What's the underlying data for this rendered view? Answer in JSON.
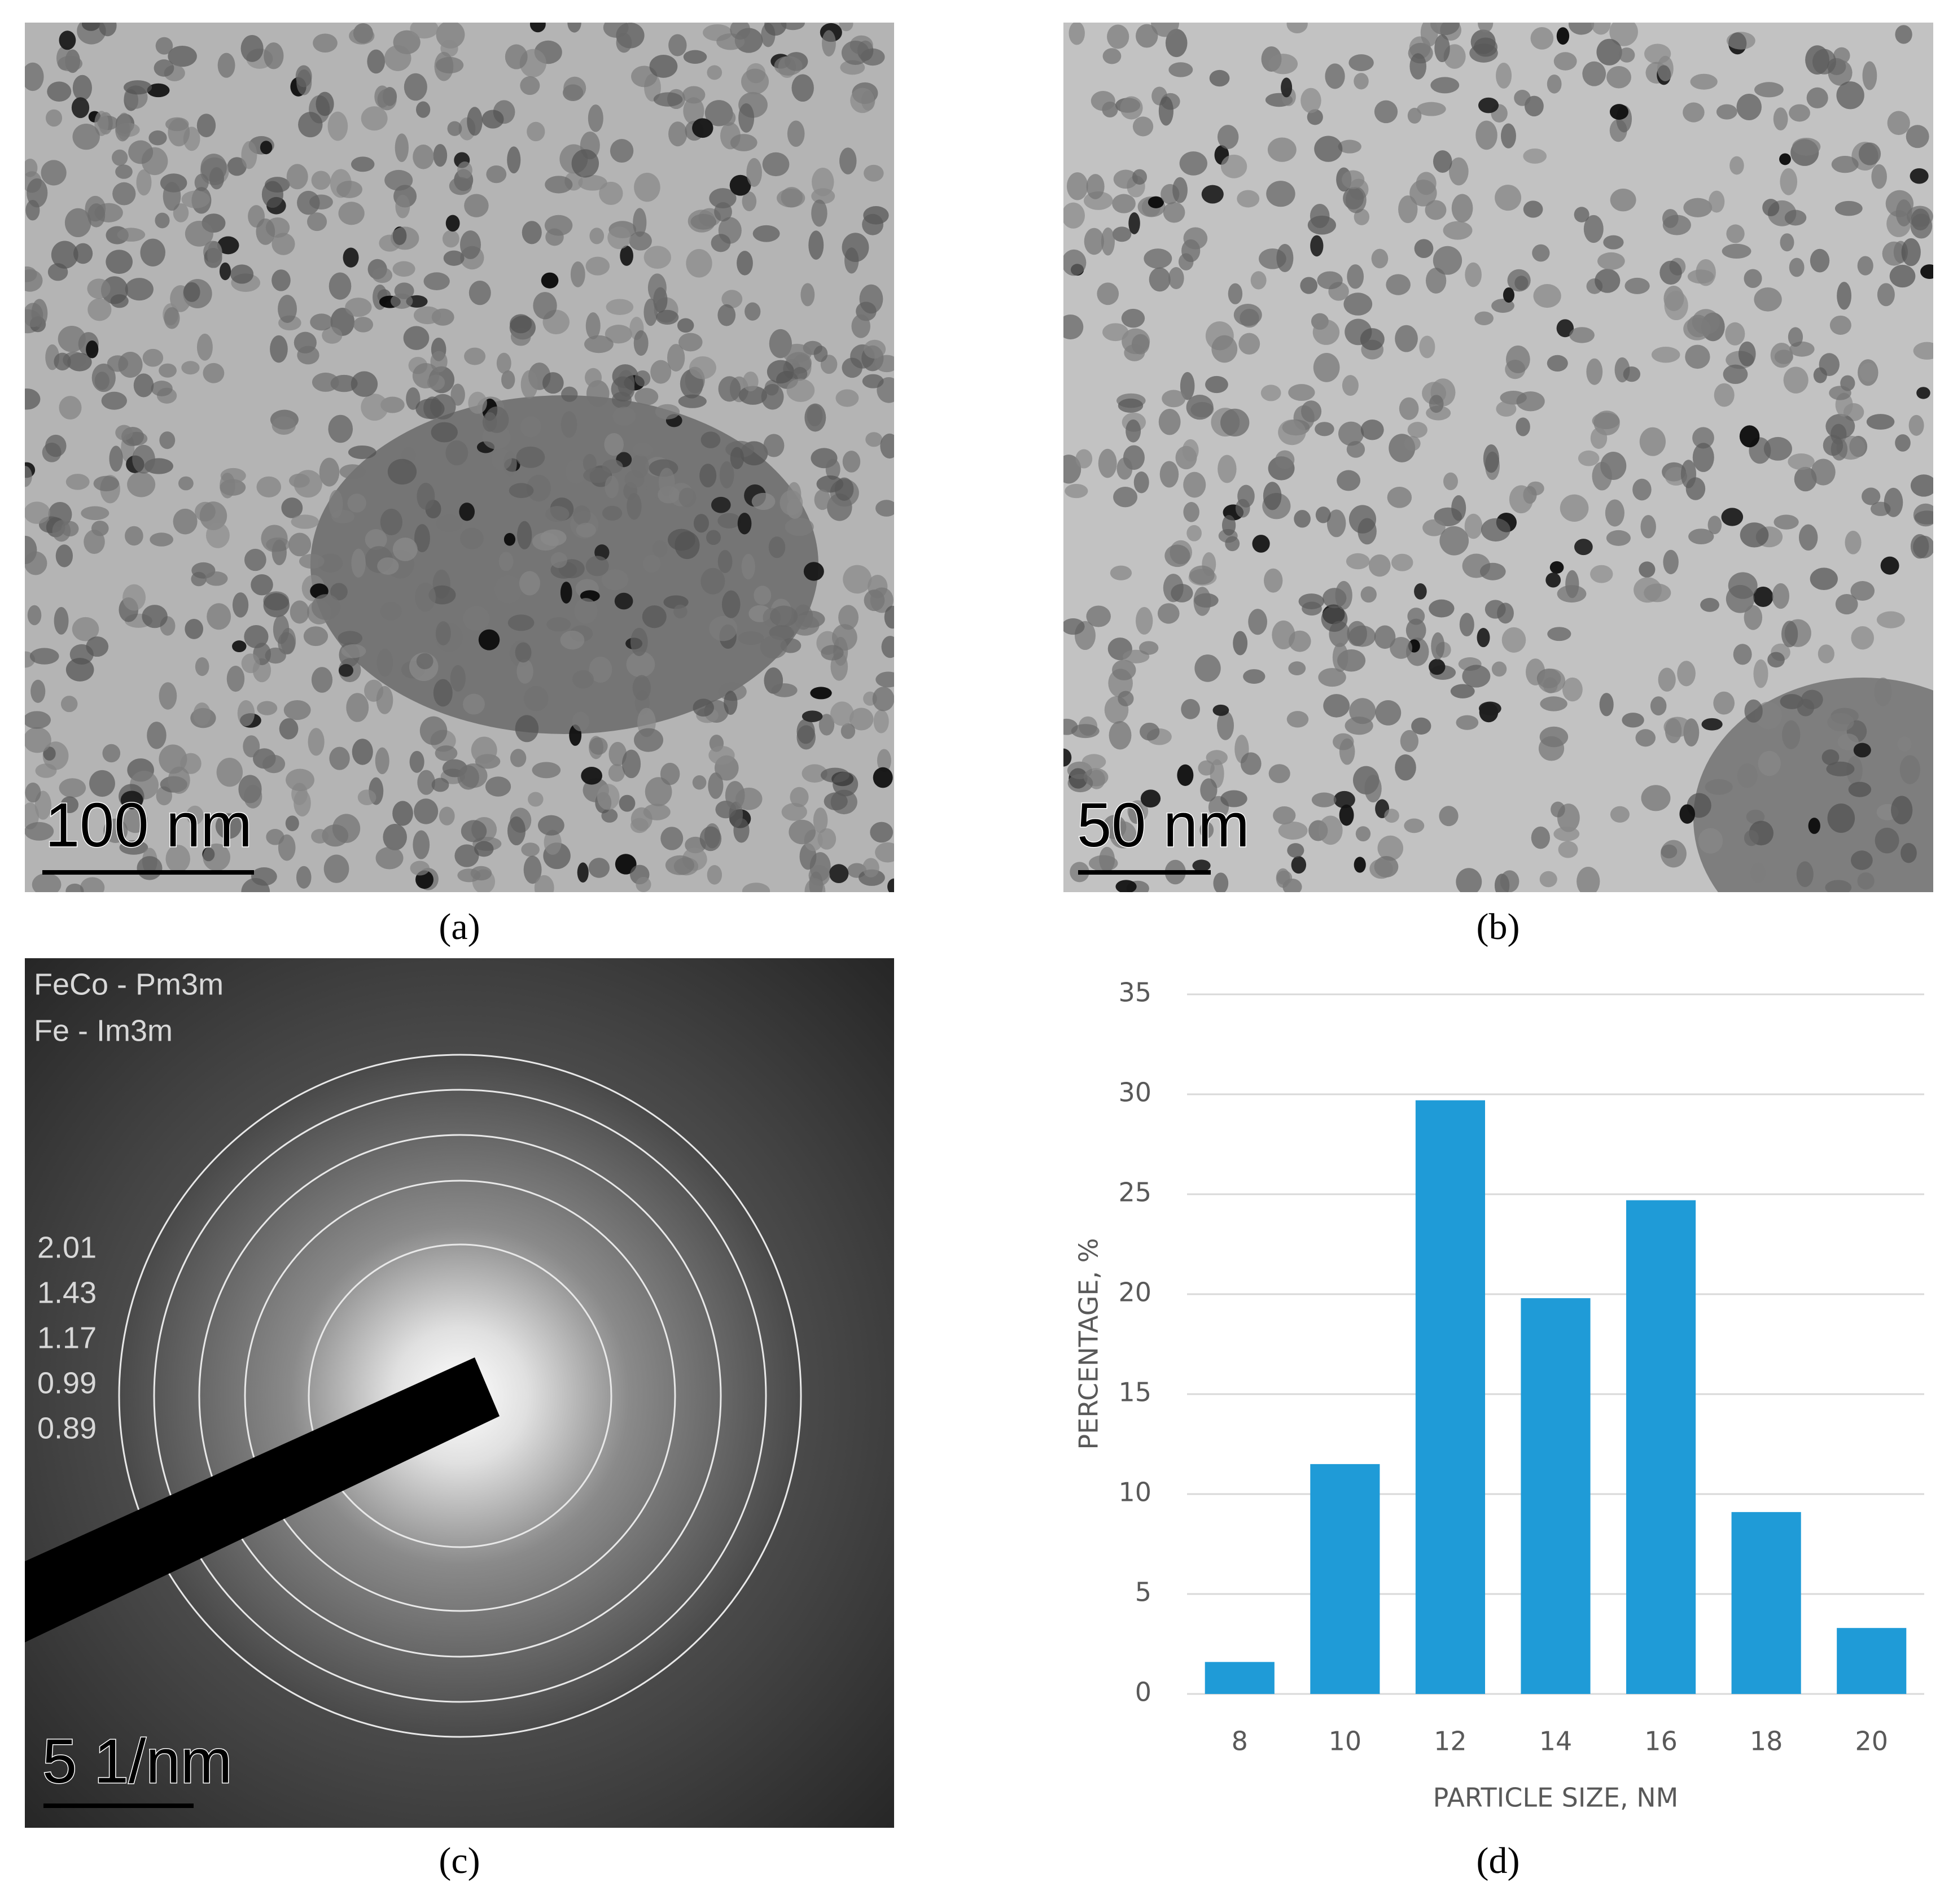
{
  "panels": [
    {
      "label": "(a)",
      "scale_bar": "100 nm"
    },
    {
      "label": "(b)",
      "scale_bar": "50 nm"
    },
    {
      "label": "(c)",
      "scale_bar": "5 1/nm",
      "phases": [
        "FeCo - Pm3m",
        "Fe - Im3m"
      ],
      "d_spacings": [
        2.01,
        1.43,
        1.17,
        0.99,
        0.89
      ]
    },
    {
      "label": "(d)"
    }
  ],
  "chart_data": {
    "type": "bar",
    "x_label": "PARTICLE SIZE, NM",
    "y_label": "PERCENTAGE, %",
    "categories": [
      8,
      10,
      12,
      14,
      16,
      18,
      20
    ],
    "values": [
      1.6,
      11.5,
      29.7,
      19.8,
      24.7,
      9.1,
      3.3
    ],
    "color": "#1f9bd7",
    "ylim": [
      0,
      35
    ],
    "yticks": [
      0,
      5,
      10,
      15,
      20,
      25,
      30,
      35
    ],
    "grid": true
  }
}
